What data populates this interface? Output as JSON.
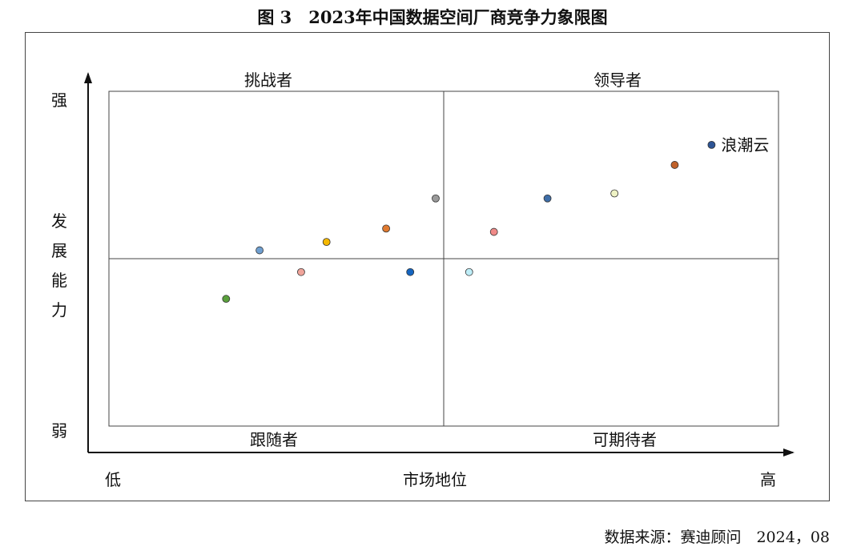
{
  "figure": {
    "title": "图 3　2023年中国数据空间厂商竞争力象限图",
    "source": "数据来源：赛迪顾问　2024，08"
  },
  "chart_data": {
    "type": "scatter",
    "title": "图 3　2023年中国数据空间厂商竞争力象限图",
    "xlabel": "市场地位",
    "ylabel": "发展能力",
    "x_low_label": "低",
    "x_high_label": "高",
    "y_high_label": "强",
    "y_low_label": "弱",
    "xlim": [
      0,
      10
    ],
    "ylim": [
      0,
      10
    ],
    "grid": false,
    "quadrants": {
      "top_left": "挑战者",
      "top_right": "领导者",
      "bottom_left": "跟随者",
      "bottom_right": "可期待者"
    },
    "divider": {
      "x": 5,
      "y": 5
    },
    "points": [
      {
        "x": 1.75,
        "y": 3.8,
        "color": "#5aa03c",
        "label": ""
      },
      {
        "x": 2.25,
        "y": 5.25,
        "color": "#6f9fd0",
        "label": ""
      },
      {
        "x": 2.87,
        "y": 4.6,
        "color": "#f0a49a",
        "label": ""
      },
      {
        "x": 3.25,
        "y": 5.5,
        "color": "#f5b800",
        "label": ""
      },
      {
        "x": 4.14,
        "y": 5.9,
        "color": "#e07a30",
        "label": ""
      },
      {
        "x": 4.5,
        "y": 4.6,
        "color": "#1565c0",
        "label": ""
      },
      {
        "x": 4.88,
        "y": 6.8,
        "color": "#9a9a9a",
        "label": ""
      },
      {
        "x": 5.38,
        "y": 4.6,
        "color": "#bfeef8",
        "label": ""
      },
      {
        "x": 5.75,
        "y": 5.8,
        "color": "#f08a88",
        "label": ""
      },
      {
        "x": 6.55,
        "y": 6.8,
        "color": "#3e6ea8",
        "label": ""
      },
      {
        "x": 7.55,
        "y": 6.95,
        "color": "#eef2c4",
        "label": ""
      },
      {
        "x": 8.45,
        "y": 7.8,
        "color": "#c0612a",
        "label": ""
      },
      {
        "x": 9.0,
        "y": 8.4,
        "color": "#2d5495",
        "label": "浪潮云"
      }
    ]
  }
}
